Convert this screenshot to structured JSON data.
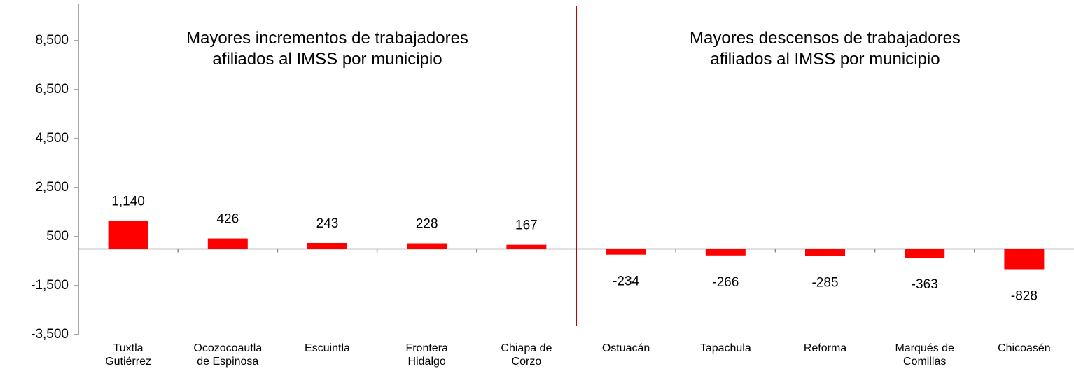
{
  "chart_data": {
    "type": "bar",
    "annotations": [
      "Mayores incrementos de trabajadores afiliados al IMSS por municipio",
      "Mayores descensos de trabajadores afiliados al IMSS por municipio"
    ],
    "categories": [
      "Tuxtla Gutiérrez",
      "Ocozocoautla de Espinosa",
      "Escuintla",
      "Frontera Hidalgo",
      "Chiapa de Corzo",
      "Ostuacán",
      "Tapachula",
      "Reforma",
      "Marqués de Comillas",
      "Chicoasén"
    ],
    "values": [
      1140,
      426,
      243,
      228,
      167,
      -234,
      -266,
      -285,
      -363,
      -828
    ],
    "value_labels": [
      "1,140",
      "426",
      "243",
      "228",
      "167",
      "-234",
      "-266",
      "-285",
      "-363",
      "-828"
    ],
    "color": "#ff0000",
    "ylim": [
      -3500,
      10000
    ],
    "yticks": [
      {
        "value": -3500,
        "label": "-3,500"
      },
      {
        "value": -1500,
        "label": "-1,500"
      },
      500,
      {
        "value": 2500,
        "label": "2,500"
      },
      {
        "value": 4500,
        "label": "4,500"
      },
      {
        "value": 6500,
        "label": "6,500"
      },
      {
        "value": 8500,
        "label": "8,500"
      }
    ],
    "grid": false
  }
}
